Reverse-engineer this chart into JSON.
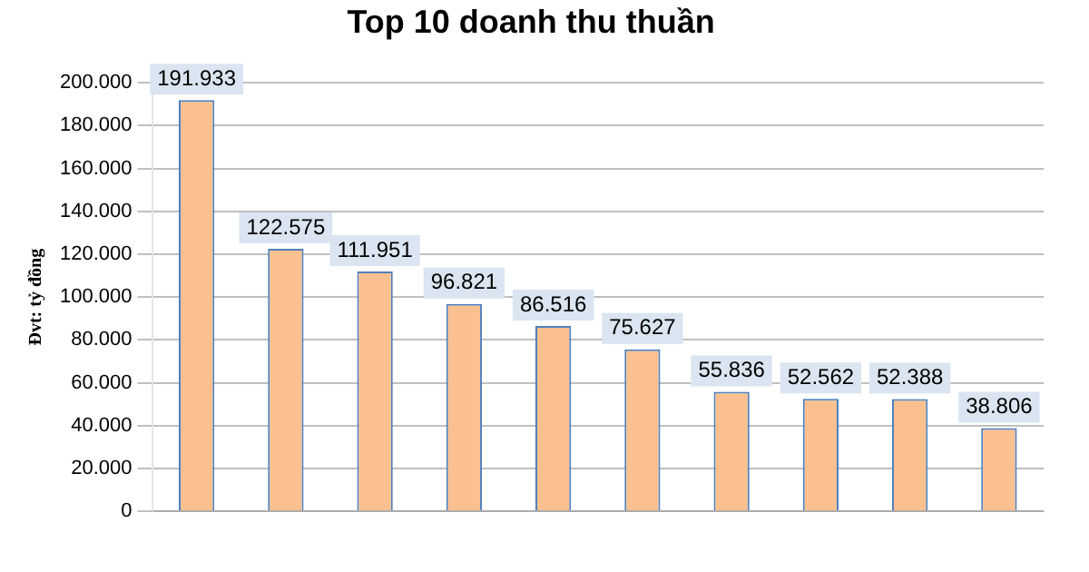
{
  "chart_data": {
    "type": "bar",
    "title": "Top 10 doanh thu thuần",
    "ylabel": "Đvt: tỷ đồng",
    "categories": [
      null,
      null,
      null,
      null,
      null,
      null,
      null,
      null,
      null,
      null
    ],
    "values": [
      191933,
      122575,
      111951,
      96821,
      86516,
      75627,
      55836,
      52562,
      52388,
      38806
    ],
    "value_labels": [
      "191.933",
      "122.575",
      "111.951",
      "96.821",
      "86.516",
      "75.627",
      "55.836",
      "52.562",
      "52.388",
      "38.806"
    ],
    "color": "#fac090",
    "ylim": [
      0,
      200000
    ],
    "yticks": [
      {
        "value": 0,
        "label": "0"
      },
      {
        "value": 20000,
        "label": "20.000"
      },
      {
        "value": 40000,
        "label": "40.000"
      },
      {
        "value": 60000,
        "label": "60.000"
      },
      {
        "value": 80000,
        "label": "80.000"
      },
      {
        "value": 100000,
        "label": "100.000"
      },
      {
        "value": 120000,
        "label": "120.000"
      },
      {
        "value": 140000,
        "label": "140.000"
      },
      {
        "value": 160000,
        "label": "160.000"
      },
      {
        "value": 180000,
        "label": "180.000"
      },
      {
        "value": 200000,
        "label": "200.000"
      }
    ],
    "grid": "y"
  }
}
